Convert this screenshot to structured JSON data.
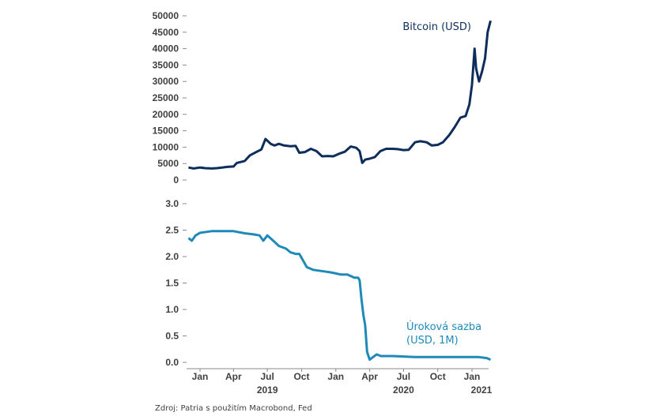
{
  "colors": {
    "bitcoin": "#0e2d5a",
    "rate": "#1f8ab8",
    "text": "#404040"
  },
  "source": "Zdroj: Patria s použitím Macrobond, Fed",
  "chart_data": [
    {
      "type": "line",
      "series": [
        {
          "name": "Bitcoin (USD)",
          "x": [
            "2018-12-01",
            "2018-12-15",
            "2019-01-01",
            "2019-01-15",
            "2019-02-01",
            "2019-02-15",
            "2019-03-01",
            "2019-03-15",
            "2019-04-01",
            "2019-04-10",
            "2019-05-01",
            "2019-05-15",
            "2019-06-01",
            "2019-06-15",
            "2019-06-26",
            "2019-07-10",
            "2019-07-20",
            "2019-08-01",
            "2019-08-15",
            "2019-09-01",
            "2019-09-15",
            "2019-09-25",
            "2019-10-10",
            "2019-10-26",
            "2019-11-10",
            "2019-11-25",
            "2019-12-10",
            "2019-12-25",
            "2020-01-10",
            "2020-01-25",
            "2020-02-10",
            "2020-02-25",
            "2020-03-05",
            "2020-03-12",
            "2020-03-20",
            "2020-04-01",
            "2020-04-15",
            "2020-04-30",
            "2020-05-15",
            "2020-06-01",
            "2020-06-15",
            "2020-07-01",
            "2020-07-15",
            "2020-08-01",
            "2020-08-15",
            "2020-09-01",
            "2020-09-15",
            "2020-10-01",
            "2020-10-15",
            "2020-11-01",
            "2020-11-15",
            "2020-12-01",
            "2020-12-15",
            "2020-12-25",
            "2021-01-01",
            "2021-01-08",
            "2021-01-12",
            "2021-01-20",
            "2021-01-28",
            "2021-02-05",
            "2021-02-12",
            "2021-02-20"
          ],
          "y": [
            3800,
            3500,
            3800,
            3600,
            3500,
            3600,
            3800,
            4000,
            4100,
            5200,
            5800,
            7500,
            8500,
            9300,
            12500,
            11000,
            10500,
            11000,
            10500,
            10300,
            10400,
            8300,
            8500,
            9500,
            8800,
            7200,
            7300,
            7200,
            8000,
            8600,
            10200,
            9800,
            8800,
            5200,
            6200,
            6500,
            7000,
            8800,
            9500,
            9500,
            9400,
            9100,
            9200,
            11500,
            11800,
            11500,
            10500,
            10700,
            11500,
            13700,
            16000,
            19000,
            19500,
            23000,
            29000,
            40000,
            34000,
            30000,
            33000,
            37000,
            45000,
            48500
          ]
        }
      ],
      "ylim": [
        0,
        50000
      ],
      "yticks": [
        "0",
        "5000",
        "10000",
        "15000",
        "20000",
        "25000",
        "30000",
        "35000",
        "40000",
        "45000",
        "50000"
      ]
    },
    {
      "type": "line",
      "series": [
        {
          "name": "Úroková sazba (USD, 1M)",
          "x": [
            "2018-12-01",
            "2018-12-10",
            "2018-12-20",
            "2019-01-01",
            "2019-02-01",
            "2019-03-01",
            "2019-04-01",
            "2019-05-01",
            "2019-05-25",
            "2019-06-10",
            "2019-06-20",
            "2019-07-01",
            "2019-07-20",
            "2019-08-01",
            "2019-08-20",
            "2019-09-01",
            "2019-09-15",
            "2019-09-25",
            "2019-10-15",
            "2019-11-01",
            "2019-12-01",
            "2019-12-20",
            "2020-01-15",
            "2020-02-01",
            "2020-02-20",
            "2020-03-01",
            "2020-03-05",
            "2020-03-10",
            "2020-03-15",
            "2020-03-20",
            "2020-03-25",
            "2020-04-01",
            "2020-04-10",
            "2020-04-20",
            "2020-05-01",
            "2020-06-01",
            "2020-07-01",
            "2020-08-01",
            "2020-09-01",
            "2020-10-01",
            "2020-11-01",
            "2020-12-01",
            "2021-01-01",
            "2021-01-20",
            "2021-02-10",
            "2021-02-20"
          ],
          "y": [
            2.35,
            2.3,
            2.4,
            2.45,
            2.48,
            2.48,
            2.48,
            2.44,
            2.42,
            2.4,
            2.3,
            2.4,
            2.28,
            2.2,
            2.15,
            2.08,
            2.05,
            2.05,
            1.8,
            1.75,
            1.72,
            1.7,
            1.66,
            1.66,
            1.6,
            1.6,
            1.55,
            1.2,
            0.9,
            0.7,
            0.2,
            0.05,
            0.1,
            0.15,
            0.12,
            0.12,
            0.11,
            0.1,
            0.1,
            0.1,
            0.1,
            0.1,
            0.1,
            0.1,
            0.08,
            0.05
          ]
        }
      ],
      "ylim": [
        0,
        3.0
      ],
      "yticks": [
        "0.0",
        "0.5",
        "1.0",
        "1.5",
        "2.0",
        "2.5",
        "3.0"
      ]
    }
  ],
  "xaxis": {
    "months": [
      {
        "label": "Jan",
        "date": "2019-01-01"
      },
      {
        "label": "Apr",
        "date": "2019-04-01"
      },
      {
        "label": "Jul",
        "date": "2019-07-01"
      },
      {
        "label": "Oct",
        "date": "2019-10-01"
      },
      {
        "label": "Jan",
        "date": "2020-01-01"
      },
      {
        "label": "Apr",
        "date": "2020-04-01"
      },
      {
        "label": "Jul",
        "date": "2020-07-01"
      },
      {
        "label": "Oct",
        "date": "2020-10-01"
      },
      {
        "label": "Jan",
        "date": "2021-01-01"
      }
    ],
    "years": [
      {
        "label": "2019",
        "date": "2019-07-01"
      },
      {
        "label": "2020",
        "date": "2020-07-01"
      },
      {
        "label": "2021",
        "date": "2021-01-01"
      }
    ]
  },
  "labels": {
    "bitcoin": [
      "Bitcoin (USD)"
    ],
    "rate": [
      "Úroková sazba",
      "(USD, 1M)"
    ]
  }
}
